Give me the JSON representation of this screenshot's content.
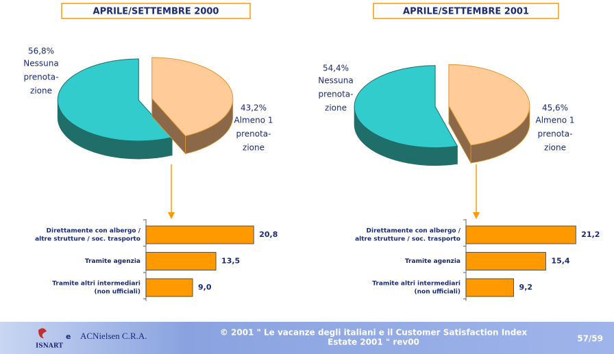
{
  "chart_data": [
    {
      "type": "pie",
      "title": "APRILE/SETTEMBRE 2000",
      "categories": [
        [
          "Nessuna",
          "prenota-",
          "zione"
        ],
        [
          "Almeno 1",
          "prenota-",
          "zione"
        ]
      ],
      "values": [
        56.8,
        43.2
      ],
      "value_labels": [
        "56,8%",
        "43,2%"
      ],
      "colors": [
        "#33cccc",
        "#ffcc99"
      ]
    },
    {
      "type": "barh",
      "categories": [
        [
          "Direttamente con albergo /",
          "altre strutture / soc. trasporto"
        ],
        [
          "Tramite agenzia"
        ],
        [
          "Tramite altri intermediari",
          "(non ufficiali)"
        ]
      ],
      "values": [
        20.8,
        13.5,
        9.0
      ],
      "value_labels": [
        "20,8",
        "13,5",
        "9,0"
      ],
      "color": "#ff9900",
      "xlim": [
        0,
        25
      ]
    },
    {
      "type": "pie",
      "title": "APRILE/SETTEMBRE 2001",
      "categories": [
        [
          "Nessuna",
          "prenota-",
          "zione"
        ],
        [
          "Almeno 1",
          "prenota-",
          "zione"
        ]
      ],
      "values": [
        54.4,
        45.6
      ],
      "value_labels": [
        "54,4%",
        "45,6%"
      ],
      "colors": [
        "#33cccc",
        "#ffcc99"
      ]
    },
    {
      "type": "barh",
      "categories": [
        [
          "Direttamente con albergo /",
          "altre strutture / soc. trasporto"
        ],
        [
          "Tramite agenzia"
        ],
        [
          "Tramite altri intermediari",
          "(non ufficiali)"
        ]
      ],
      "values": [
        21.2,
        15.4,
        9.2
      ],
      "value_labels": [
        "21,2",
        "15,4",
        "9,2"
      ],
      "color": "#ff9900",
      "xlim": [
        0,
        25
      ]
    }
  ],
  "footer": {
    "logo": "ISNART",
    "and": "e",
    "partner": "ACNielsen C.R.A.",
    "line1": "© 2001 \" Le vacanze degli italiani e il Customer Satisfaction Index",
    "line2": "Estate 2001 \" rev00",
    "page": "57/59"
  }
}
